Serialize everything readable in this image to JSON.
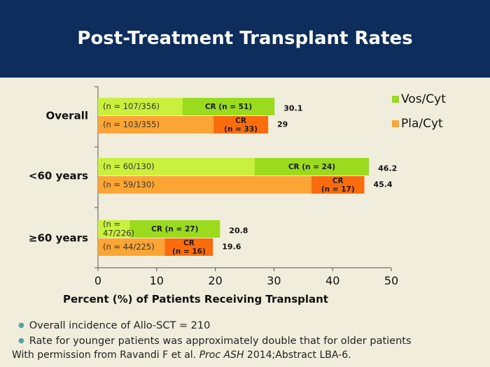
{
  "slide": {
    "title": "Post-Treatment Transplant Rates",
    "bullets": [
      "Overall incidence of Allo-SCT = 210",
      "Rate for younger patients was approximately double that for older patients"
    ],
    "footer": {
      "prefix": "With permission from Ravandi F et al. ",
      "journal": "Proc ASH",
      "suffix": " 2014;Abstract LBA-6."
    }
  },
  "colors": {
    "header_bg": "#0D2E5C",
    "background": "#F1EDDC",
    "vos_light": "#C8F03C",
    "vos_dark": "#9BDB1D",
    "pla_light": "#FBA634",
    "pla_dark": "#FB6C0C"
  },
  "chart_data": {
    "type": "bar",
    "orientation": "horizontal",
    "stacked": true,
    "xlabel": "Percent (%) of Patients Receiving Transplant",
    "xlim": [
      0,
      50
    ],
    "xticks": [
      "0",
      "10",
      "20",
      "30",
      "40",
      "50"
    ],
    "legend_position": "top-right",
    "categories": [
      {
        "label": "Overall",
        "bars": [
          {
            "series": "Vos/Cyt",
            "total": 30.1,
            "total_label": "30.1",
            "cr_value": 15.7,
            "n_label": "(n = 107/356)",
            "cr_label": "CR (n = 51)"
          },
          {
            "series": "Pla/Cyt",
            "total": 29.0,
            "total_label": "29",
            "cr_value": 9.3,
            "n_label": "(n = 103/355)",
            "cr_label": "CR\n(n = 33)"
          }
        ]
      },
      {
        "label": "<60 years",
        "bars": [
          {
            "series": "Vos/Cyt",
            "total": 46.2,
            "total_label": "46.2",
            "cr_value": 19.5,
            "n_label": "(n = 60/130)",
            "cr_label": "CR  (n = 24)"
          },
          {
            "series": "Pla/Cyt",
            "total": 45.4,
            "total_label": "45.4",
            "cr_value": 9.0,
            "n_label": "(n = 59/130)",
            "cr_label": "CR\n(n = 17)"
          }
        ]
      },
      {
        "label": "≥60 years",
        "bars": [
          {
            "series": "Vos/Cyt",
            "total": 20.8,
            "total_label": "20.8",
            "cr_value": 15.4,
            "n_label": "(n =\n47/226)",
            "cr_label": "CR (n = 27)"
          },
          {
            "series": "Pla/Cyt",
            "total": 19.6,
            "total_label": "19.6",
            "cr_value": 8.2,
            "n_label": "(n = 44/225)",
            "cr_label": "CR\n(n = 16)"
          }
        ]
      }
    ],
    "series": [
      {
        "name": "Vos/Cyt"
      },
      {
        "name": "Pla/Cyt"
      }
    ]
  }
}
